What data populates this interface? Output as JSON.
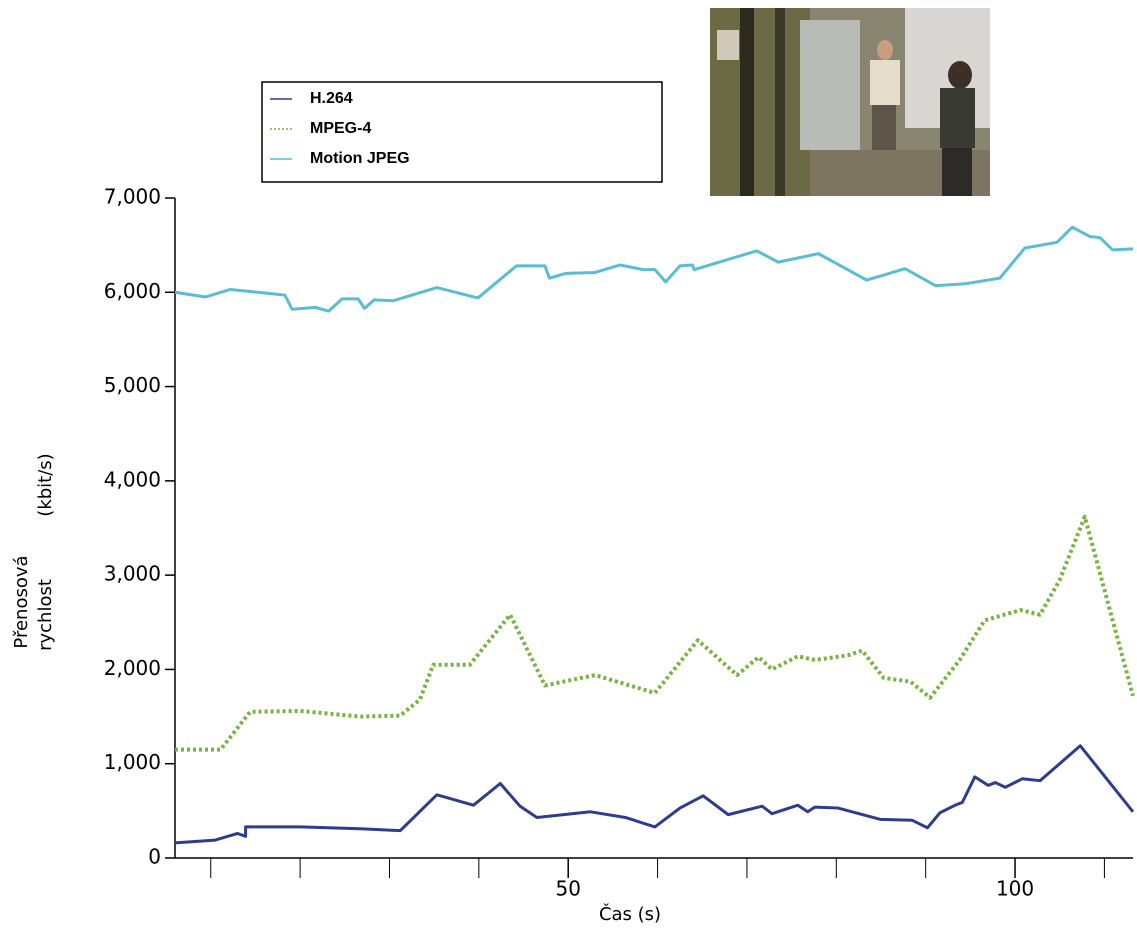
{
  "chart_data": {
    "type": "line",
    "xlabel": "Čas (s)",
    "ylabel": [
      "Přenosová",
      "(kbit/s)",
      "rychlost"
    ],
    "xlim": [
      6,
      113.2
    ],
    "ylim": [
      0,
      7000
    ],
    "xticks": [
      50,
      100
    ],
    "xminorticks": [
      10,
      20,
      30,
      40,
      60,
      70,
      80,
      90,
      110
    ],
    "yticks": [
      {
        "value": 0,
        "label": "0"
      },
      {
        "value": 1000,
        "label": "1,000"
      },
      {
        "value": 2000,
        "label": "2,000"
      },
      {
        "value": 3000,
        "label": "3,000"
      },
      {
        "value": 4000,
        "label": "4,000"
      },
      {
        "value": 5000,
        "label": "5,000"
      },
      {
        "value": 6000,
        "label": "6,000"
      },
      {
        "value": 7000,
        "label": "7,000"
      }
    ],
    "series": [
      {
        "name": "H.264",
        "color": "#2e3c8f",
        "style": "solid",
        "x": [
          6.0,
          10.5,
          13.0,
          13.9,
          13.9,
          20.0,
          26.7,
          31.2,
          35.3,
          39.4,
          42.4,
          44.6,
          46.5,
          52.5,
          56.4,
          59.7,
          62.5,
          65.1,
          67.9,
          71.7,
          72.8,
          75.7,
          76.8,
          77.6,
          80.2,
          84.9,
          88.5,
          90.2,
          91.6,
          93.3,
          94.1,
          95.5,
          97.0,
          97.8,
          98.9,
          100.8,
          102.8,
          107.3,
          113.2
        ],
        "values": [
          160,
          190,
          260,
          230,
          330,
          330,
          310,
          290,
          670,
          560,
          790,
          550,
          430,
          490,
          430,
          330,
          530,
          660,
          460,
          550,
          470,
          560,
          490,
          540,
          530,
          410,
          400,
          320,
          480,
          560,
          590,
          860,
          770,
          800,
          750,
          840,
          820,
          1190,
          490
        ]
      },
      {
        "name": "MPEG-4",
        "color": "#77b43f",
        "style": "dotted",
        "x": [
          6.0,
          11.1,
          14.4,
          20.0,
          26.7,
          31.2,
          33.4,
          34.9,
          39.0,
          43.5,
          47.4,
          53.0,
          59.7,
          64.5,
          68.9,
          71.3,
          72.8,
          75.7,
          77.6,
          81.3,
          82.9,
          85.3,
          88.3,
          90.5,
          93.8,
          96.6,
          100.6,
          102.8,
          105.0,
          107.8,
          113.2
        ],
        "values": [
          1150,
          1150,
          1550,
          1560,
          1500,
          1510,
          1680,
          2050,
          2050,
          2580,
          1830,
          1940,
          1750,
          2310,
          1940,
          2130,
          2000,
          2140,
          2100,
          2150,
          2200,
          1910,
          1870,
          1700,
          2100,
          2520,
          2630,
          2580,
          2950,
          3620,
          1720
        ]
      },
      {
        "name": "Motion JPEG",
        "color": "#5bbcd6",
        "style": "solid",
        "x": [
          6.0,
          9.4,
          12.2,
          18.3,
          19.1,
          21.7,
          23.2,
          24.7,
          26.5,
          27.2,
          28.3,
          30.4,
          35.3,
          39.9,
          44.2,
          47.4,
          47.9,
          49.7,
          53.0,
          55.8,
          58.4,
          59.7,
          60.9,
          62.5,
          63.9,
          64.1,
          71.1,
          73.5,
          78.0,
          83.4,
          87.7,
          91.1,
          94.4,
          98.3,
          101.1,
          104.7,
          106.4,
          108.4,
          109.5,
          110.9,
          113.2
        ],
        "values": [
          6000,
          5950,
          6030,
          5970,
          5820,
          5840,
          5800,
          5930,
          5930,
          5830,
          5920,
          5910,
          6050,
          5940,
          6280,
          6280,
          6150,
          6200,
          6210,
          6290,
          6240,
          6240,
          6110,
          6280,
          6290,
          6240,
          6440,
          6320,
          6410,
          6130,
          6250,
          6070,
          6090,
          6150,
          6470,
          6530,
          6690,
          6590,
          6580,
          6450,
          6460
        ]
      }
    ]
  }
}
